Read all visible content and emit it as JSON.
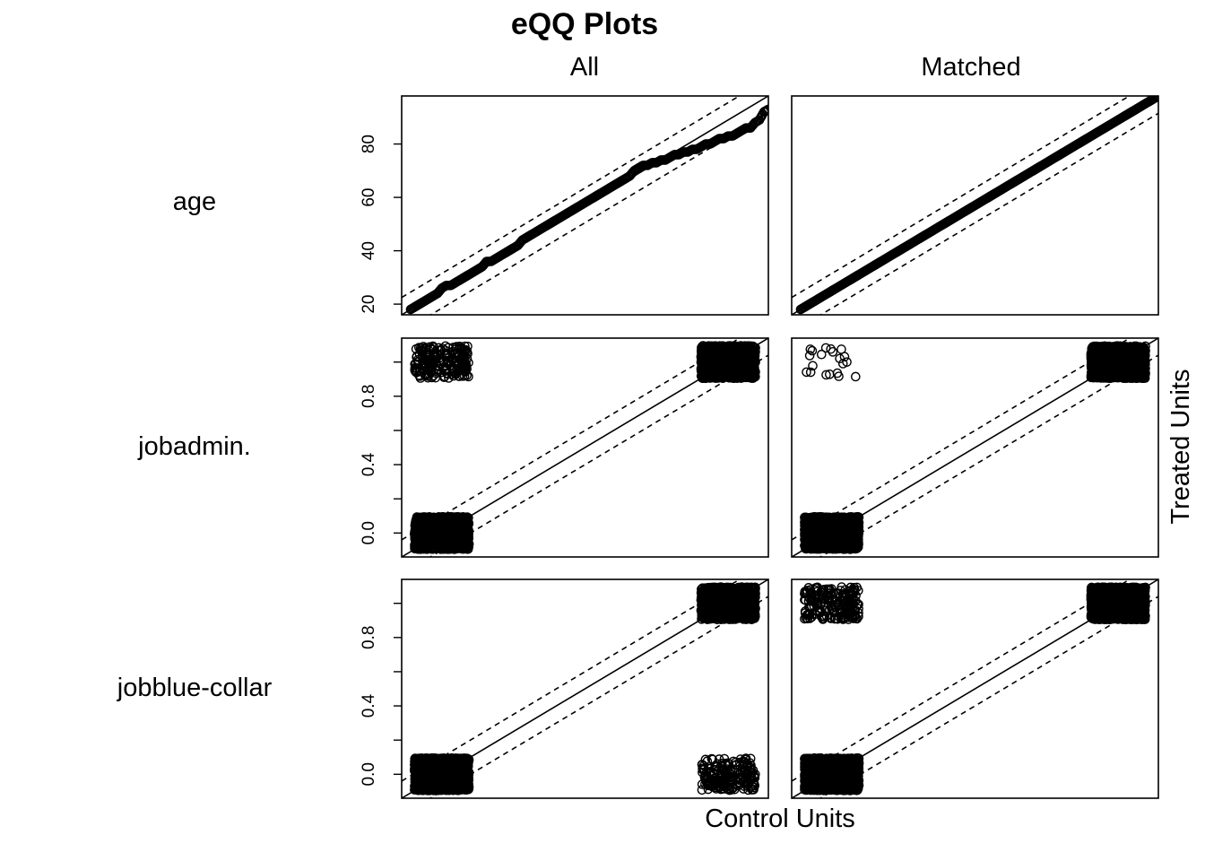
{
  "chart_data": {
    "type": "scatter",
    "title": "eQQ Plots",
    "xlabel": "Control Units",
    "ylabel": "Treated Units",
    "columns": [
      "All",
      "Matched"
    ],
    "rows": [
      {
        "label": "age",
        "ylim": [
          16,
          98
        ],
        "yticks": [
          20,
          40,
          60,
          80
        ],
        "ytick_labels": [
          "20",
          "40",
          "60",
          "80"
        ],
        "band": 6.5,
        "panels": [
          {
            "column": "All",
            "quantiles_control": [
              18,
              19,
              20,
              21,
              22,
              23,
              24,
              25,
              26,
              27,
              28,
              29,
              30,
              31,
              32,
              33,
              34,
              35,
              36,
              37,
              38,
              39,
              40,
              41,
              42,
              43,
              44,
              45,
              46,
              47,
              48,
              49,
              50,
              51,
              52,
              53,
              54,
              55,
              56,
              57,
              58,
              59,
              60,
              61,
              62,
              63,
              64,
              65,
              66,
              67,
              68,
              69,
              70,
              71,
              72,
              73,
              74,
              75,
              76,
              77,
              78,
              79,
              80,
              81,
              82,
              83,
              84,
              85,
              86,
              87,
              88,
              89,
              90,
              91,
              92,
              93,
              94,
              95,
              96,
              97,
              98
            ],
            "quantiles_treated": [
              18,
              19,
              20,
              21,
              22,
              23,
              24,
              26,
              27,
              27,
              28,
              29,
              30,
              31,
              32,
              33,
              34,
              36,
              36,
              37,
              38,
              39,
              40,
              41,
              42,
              44,
              45,
              46,
              47,
              48,
              49,
              50,
              51,
              52,
              53,
              54,
              55,
              56,
              57,
              58,
              59,
              60,
              61,
              62,
              63,
              64,
              65,
              66,
              67,
              68,
              70,
              71,
              72,
              72,
              73,
              73,
              74,
              74,
              75,
              76,
              76,
              77,
              77,
              78,
              78,
              79,
              80,
              80,
              81,
              82,
              82,
              83,
              83,
              84,
              85,
              86,
              86,
              88,
              89,
              92,
              93
            ]
          },
          {
            "column": "Matched",
            "quantiles_control": [
              18,
              19,
              20,
              21,
              22,
              23,
              24,
              25,
              26,
              27,
              28,
              29,
              30,
              31,
              32,
              33,
              34,
              35,
              36,
              37,
              38,
              39,
              40,
              41,
              42,
              43,
              44,
              45,
              46,
              47,
              48,
              49,
              50,
              51,
              52,
              53,
              54,
              55,
              56,
              57,
              58,
              59,
              60,
              61,
              62,
              63,
              64,
              65,
              66,
              67,
              68,
              69,
              70,
              71,
              72,
              73,
              74,
              75,
              76,
              77,
              78,
              79,
              80,
              81,
              82,
              83,
              84,
              85,
              86,
              87,
              88,
              89,
              90,
              91,
              92,
              93,
              94,
              95,
              96,
              97,
              98
            ],
            "quantiles_treated": [
              18,
              19,
              20,
              21,
              22,
              23,
              24,
              25,
              26,
              27,
              28,
              29,
              30,
              31,
              32,
              33,
              34,
              35,
              36,
              37,
              38,
              39,
              40,
              41,
              42,
              43,
              44,
              45,
              46,
              47,
              48,
              49,
              50,
              51,
              52,
              53,
              54,
              55,
              56,
              57,
              58,
              59,
              60,
              61,
              62,
              63,
              64,
              65,
              66,
              67,
              68,
              69,
              70,
              71,
              72,
              73,
              74,
              75,
              76,
              77,
              78,
              79,
              80,
              81,
              82,
              83,
              84,
              85,
              86,
              87,
              88,
              89,
              90,
              91,
              92,
              93,
              94,
              95,
              96,
              97,
              98
            ]
          }
        ]
      },
      {
        "label": "jobadmin.",
        "ylim": [
          -0.14,
          1.14
        ],
        "yticks": [
          0.0,
          0.2,
          0.4,
          0.6,
          0.8,
          1.0
        ],
        "ytick_labels": [
          "0.0",
          "",
          "0.4",
          "",
          "0.8",
          ""
        ],
        "band": 0.1,
        "panels": [
          {
            "column": "All",
            "clusters": [
              {
                "x": 0,
                "y": 0,
                "density": "dense"
              },
              {
                "x": 1,
                "y": 1,
                "density": "dense"
              },
              {
                "x": 0,
                "y": 1,
                "density": "sparse"
              }
            ]
          },
          {
            "column": "Matched",
            "clusters": [
              {
                "x": 0,
                "y": 0,
                "density": "dense"
              },
              {
                "x": 1,
                "y": 1,
                "density": "dense"
              },
              {
                "x": 0,
                "y": 1,
                "density": "few"
              }
            ]
          }
        ]
      },
      {
        "label": "jobblue-collar",
        "ylim": [
          -0.14,
          1.14
        ],
        "yticks": [
          0.0,
          0.2,
          0.4,
          0.6,
          0.8,
          1.0
        ],
        "ytick_labels": [
          "0.0",
          "",
          "0.4",
          "",
          "0.8",
          ""
        ],
        "band": 0.1,
        "panels": [
          {
            "column": "All",
            "clusters": [
              {
                "x": 0,
                "y": 0,
                "density": "dense"
              },
              {
                "x": 1,
                "y": 1,
                "density": "dense"
              },
              {
                "x": 1,
                "y": 0,
                "density": "sparse"
              }
            ]
          },
          {
            "column": "Matched",
            "clusters": [
              {
                "x": 0,
                "y": 0,
                "density": "dense"
              },
              {
                "x": 1,
                "y": 1,
                "density": "dense"
              },
              {
                "x": 0,
                "y": 1,
                "density": "sparse"
              }
            ]
          }
        ]
      }
    ]
  }
}
